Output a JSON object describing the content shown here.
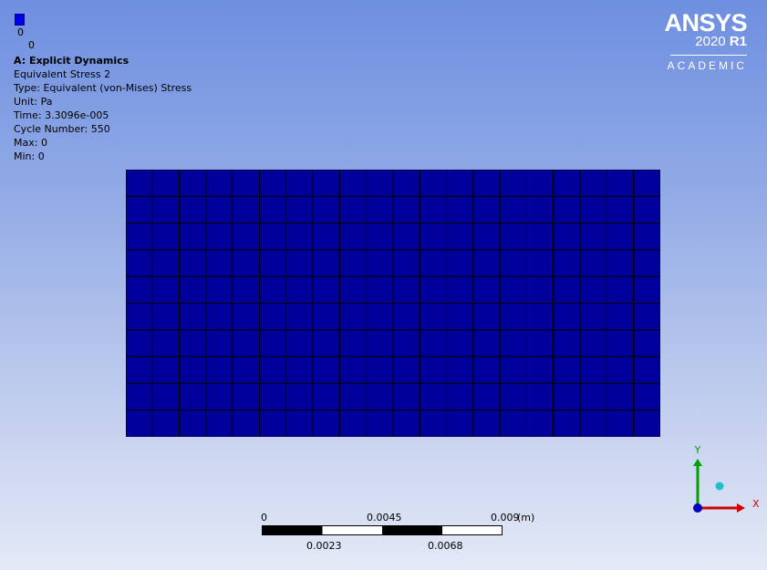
{
  "legend": {
    "swatch_color": "#0000e8",
    "mark_label": "0",
    "value_label": "0"
  },
  "info": {
    "title": "A: Explicit Dynamics",
    "result_name": "Equivalent Stress 2",
    "type": "Type: Equivalent (von-Mises) Stress",
    "unit": "Unit: Pa",
    "time": "Time: 3.3096e-005",
    "cycle": "Cycle Number: 550",
    "max": "Max: 0",
    "min": "Min: 0"
  },
  "logo": {
    "name": "ANSYS",
    "version": "2020",
    "release": "R1",
    "edition": "ACADEMIC"
  },
  "mesh": {
    "columns": 20,
    "rows": 10,
    "fill_color": "#00009a",
    "edge_color": "#000000"
  },
  "scale_bar": {
    "top_labels": [
      "0",
      "0.0045",
      "0.009"
    ],
    "unit": "(m)",
    "bottom_labels": [
      "0.0023",
      "0.0068"
    ]
  },
  "triad": {
    "x_label": "X",
    "y_label": "Y",
    "x_color": "#d00000",
    "y_color": "#00a000",
    "origin_color": "#0000c0",
    "iso_color": "#20c0c8"
  }
}
